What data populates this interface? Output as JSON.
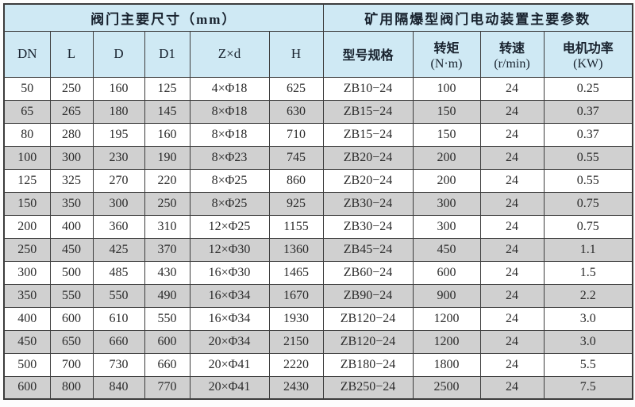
{
  "colors": {
    "header_bg": "#cfe9f4",
    "alt_row_bg": "#d0d0d0",
    "row_bg": "#ffffff",
    "border": "#3c3c3c",
    "text": "#2b2b2b",
    "header_text": "#18222e"
  },
  "table": {
    "group_headers": [
      {
        "label": "阀门主要尺寸（mm）",
        "colspan": 6
      },
      {
        "label": "矿用隔爆型阀门电动装置主要参数",
        "colspan": 4
      }
    ],
    "columns": [
      {
        "label": "DN"
      },
      {
        "label": "L"
      },
      {
        "label": "D"
      },
      {
        "label": "D1"
      },
      {
        "label": "Z×d"
      },
      {
        "label": "H"
      },
      {
        "label": "型号规格"
      },
      {
        "label": "转矩",
        "sub": "(N·m)"
      },
      {
        "label": "转速",
        "sub": "(r/min)"
      },
      {
        "label": "电机功率",
        "sub": "(KW)"
      }
    ],
    "rows": [
      [
        "50",
        "250",
        "160",
        "125",
        "4×Φ18",
        "625",
        "ZB10−24",
        "100",
        "24",
        "0.25"
      ],
      [
        "65",
        "265",
        "180",
        "145",
        "8×Φ18",
        "630",
        "ZB15−24",
        "150",
        "24",
        "0.37"
      ],
      [
        "80",
        "280",
        "195",
        "160",
        "8×Φ18",
        "710",
        "ZB15−24",
        "150",
        "24",
        "0.37"
      ],
      [
        "100",
        "300",
        "230",
        "190",
        "8×Φ23",
        "745",
        "ZB20−24",
        "200",
        "24",
        "0.55"
      ],
      [
        "125",
        "325",
        "270",
        "220",
        "8×Φ25",
        "860",
        "ZB20−24",
        "200",
        "24",
        "0.55"
      ],
      [
        "150",
        "350",
        "300",
        "250",
        "8×Φ25",
        "925",
        "ZB30−24",
        "300",
        "24",
        "0.75"
      ],
      [
        "200",
        "400",
        "360",
        "310",
        "12×Φ25",
        "1155",
        "ZB30−24",
        "300",
        "24",
        "0.75"
      ],
      [
        "250",
        "450",
        "425",
        "370",
        "12×Φ30",
        "1360",
        "ZB45−24",
        "450",
        "24",
        "1.1"
      ],
      [
        "300",
        "500",
        "485",
        "430",
        "16×Φ30",
        "1465",
        "ZB60−24",
        "600",
        "24",
        "1.5"
      ],
      [
        "350",
        "550",
        "550",
        "490",
        "16×Φ34",
        "1670",
        "ZB90−24",
        "900",
        "24",
        "2.2"
      ],
      [
        "400",
        "600",
        "610",
        "550",
        "16×Φ34",
        "1930",
        "ZB120−24",
        "1200",
        "24",
        "3.0"
      ],
      [
        "450",
        "650",
        "660",
        "600",
        "20×Φ34",
        "2150",
        "ZB120−24",
        "1200",
        "24",
        "3.0"
      ],
      [
        "500",
        "700",
        "730",
        "660",
        "20×Φ41",
        "2220",
        "ZB180−24",
        "1800",
        "24",
        "5.5"
      ],
      [
        "600",
        "800",
        "840",
        "770",
        "20×Φ41",
        "2430",
        "ZB250−24",
        "2500",
        "24",
        "7.5"
      ]
    ]
  }
}
